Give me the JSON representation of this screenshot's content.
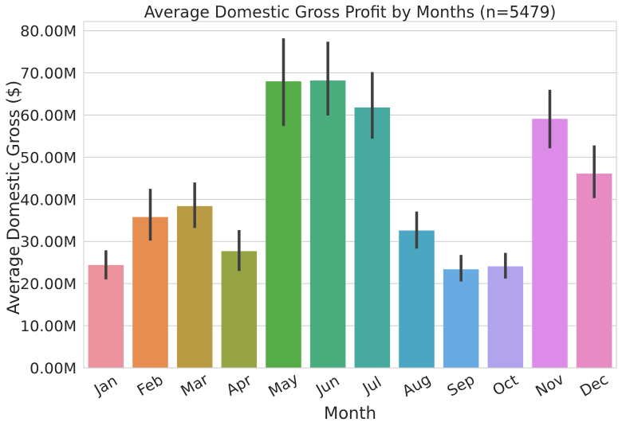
{
  "chart_data": {
    "type": "bar",
    "title": "Average Domestic Gross Profit by Months (n=5479)",
    "xlabel": "Month",
    "ylabel": "Average Domestic Gross ($)",
    "categories": [
      "Jan",
      "Feb",
      "Mar",
      "Apr",
      "May",
      "Jun",
      "Jul",
      "Aug",
      "Sep",
      "Oct",
      "Nov",
      "Dec"
    ],
    "values": [
      24.4,
      35.8,
      38.4,
      27.7,
      68.0,
      68.2,
      61.8,
      32.6,
      23.4,
      24.1,
      59.1,
      46.1
    ],
    "error_low": [
      21.0,
      30.2,
      33.2,
      23.0,
      57.4,
      59.9,
      54.4,
      28.3,
      20.5,
      21.2,
      52.1,
      40.3
    ],
    "error_high": [
      27.9,
      42.5,
      44.0,
      32.7,
      78.2,
      77.4,
      70.2,
      37.1,
      26.8,
      27.3,
      66.0,
      52.8
    ],
    "colors": [
      "#eb929d",
      "#e68e51",
      "#b99b44",
      "#97a443",
      "#56ad47",
      "#4aad7e",
      "#47a9a0",
      "#4ba7c1",
      "#68abe3",
      "#b2a4ec",
      "#dd8be9",
      "#e88ac4"
    ],
    "y_ticks": [
      0,
      10,
      20,
      30,
      40,
      50,
      60,
      70,
      80
    ],
    "y_tick_labels": [
      "0.00M",
      "10.00M",
      "20.00M",
      "30.00M",
      "40.00M",
      "50.00M",
      "60.00M",
      "70.00M",
      "80.00M"
    ],
    "ylim": [
      0,
      82.2
    ],
    "grid": "horizontal",
    "legend": "none"
  }
}
